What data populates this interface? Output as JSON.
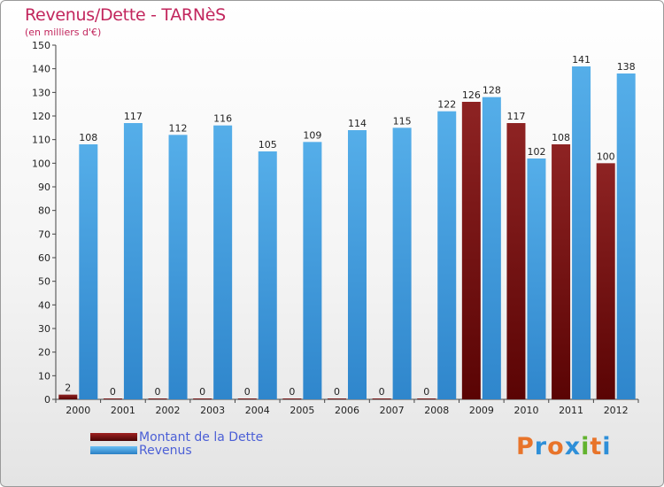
{
  "header": {
    "title": "Revenus/Dette - TARNèS",
    "subtitle": "(en milliers d'€)"
  },
  "legend": {
    "debt_label": "Montant de la Dette",
    "revenue_label": "Revenus"
  },
  "logo": {
    "text": "Proxiti",
    "colors": [
      "#e8742a",
      "#2e8fd8",
      "#e8742a",
      "#2e8fd8",
      "#62b32e",
      "#e8742a",
      "#2e8fd8"
    ]
  },
  "colors": {
    "debt": "#6b0a0a",
    "revenue": "#3e9fe3",
    "title": "#c2265d"
  },
  "chart_data": {
    "type": "bar",
    "title": "Revenus/Dette - TARNèS",
    "subtitle": "(en milliers d'€)",
    "categories": [
      "2000",
      "2001",
      "2002",
      "2003",
      "2004",
      "2005",
      "2006",
      "2007",
      "2008",
      "2009",
      "2010",
      "2011",
      "2012"
    ],
    "series": [
      {
        "name": "Montant de la Dette",
        "values": [
          2,
          0,
          0,
          0,
          0,
          0,
          0,
          0,
          0,
          126,
          117,
          108,
          100
        ]
      },
      {
        "name": "Revenus",
        "values": [
          108,
          117,
          112,
          116,
          105,
          109,
          114,
          115,
          122,
          128,
          102,
          141,
          138
        ]
      }
    ],
    "ylim": [
      0,
      150
    ],
    "yticks": [
      0,
      10,
      20,
      30,
      40,
      50,
      60,
      70,
      80,
      90,
      100,
      110,
      120,
      130,
      140,
      150
    ],
    "grid": false,
    "legend_position": "bottom-left"
  }
}
